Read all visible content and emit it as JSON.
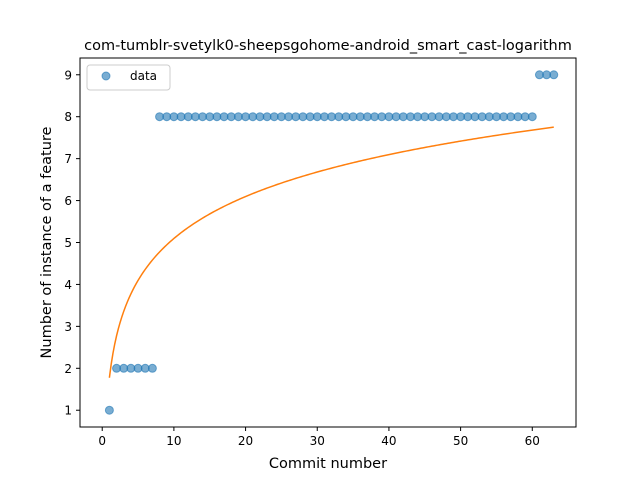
{
  "chart_data": {
    "type": "scatter",
    "title": "com-tumblr-svetylk0-sheepsgohome-android_smart_cast-logarithm",
    "xlabel": "Commit number",
    "ylabel": "Number of instance of a feature",
    "xlim": [
      -3.1,
      66.1
    ],
    "ylim": [
      0.6,
      9.4
    ],
    "xticks": [
      0,
      10,
      20,
      30,
      40,
      50,
      60
    ],
    "yticks": [
      1,
      2,
      3,
      4,
      5,
      6,
      7,
      8,
      9
    ],
    "grid": false,
    "legend": {
      "position": "upper-left",
      "entries": [
        "data"
      ]
    },
    "series": [
      {
        "name": "data",
        "kind": "scatter",
        "color": "#1f77b4",
        "x": [
          1,
          2,
          3,
          4,
          5,
          6,
          7,
          8,
          9,
          10,
          11,
          12,
          13,
          14,
          15,
          16,
          17,
          18,
          19,
          20,
          21,
          22,
          23,
          24,
          25,
          26,
          27,
          28,
          29,
          30,
          31,
          32,
          33,
          34,
          35,
          36,
          37,
          38,
          39,
          40,
          41,
          42,
          43,
          44,
          45,
          46,
          47,
          48,
          49,
          50,
          51,
          52,
          53,
          54,
          55,
          56,
          57,
          58,
          59,
          60,
          61,
          62,
          63
        ],
        "y": [
          1,
          2,
          2,
          2,
          2,
          2,
          2,
          8,
          8,
          8,
          8,
          8,
          8,
          8,
          8,
          8,
          8,
          8,
          8,
          8,
          8,
          8,
          8,
          8,
          8,
          8,
          8,
          8,
          8,
          8,
          8,
          8,
          8,
          8,
          8,
          8,
          8,
          8,
          8,
          8,
          8,
          8,
          8,
          8,
          8,
          8,
          8,
          8,
          8,
          8,
          8,
          8,
          8,
          8,
          8,
          8,
          8,
          8,
          8,
          8,
          9,
          9,
          9
        ]
      },
      {
        "kind": "line",
        "color": "#ff7f0e",
        "x": [
          1,
          2,
          3,
          4,
          5,
          6,
          7,
          8,
          10,
          12,
          15,
          20,
          25,
          30,
          35,
          40,
          45,
          50,
          55,
          60,
          63
        ],
        "y": [
          1.77,
          2.77,
          3.35,
          3.77,
          4.09,
          4.35,
          4.57,
          4.77,
          5.09,
          5.35,
          5.68,
          6.09,
          6.41,
          6.67,
          6.9,
          7.09,
          7.26,
          7.41,
          7.55,
          7.68,
          7.75
        ]
      }
    ],
    "fit_params": {
      "a": 1.7739,
      "b": 1.4427
    }
  }
}
